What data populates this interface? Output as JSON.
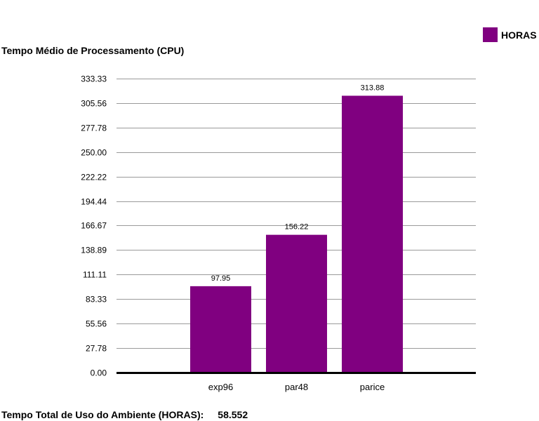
{
  "chart_data": {
    "type": "bar",
    "title": "Tempo Médio de Processamento (CPU)",
    "categories": [
      "exp96",
      "par48",
      "parice"
    ],
    "series": [
      {
        "name": "HORAS",
        "values": [
          97.95,
          156.22,
          313.88
        ]
      }
    ],
    "value_labels": [
      "97.95",
      "156.22",
      "313.88"
    ],
    "y_ticks": [
      "0.00",
      "27.78",
      "55.56",
      "83.33",
      "111.11",
      "138.89",
      "166.67",
      "194.44",
      "222.22",
      "250.00",
      "277.78",
      "305.56",
      "333.33"
    ],
    "ylim": [
      0,
      333.33
    ],
    "grid": true,
    "legend_position": "top-right",
    "bar_color": "#800080"
  },
  "footer": {
    "label": "Tempo Total de Uso do Ambiente (HORAS):",
    "value": "58.552"
  }
}
